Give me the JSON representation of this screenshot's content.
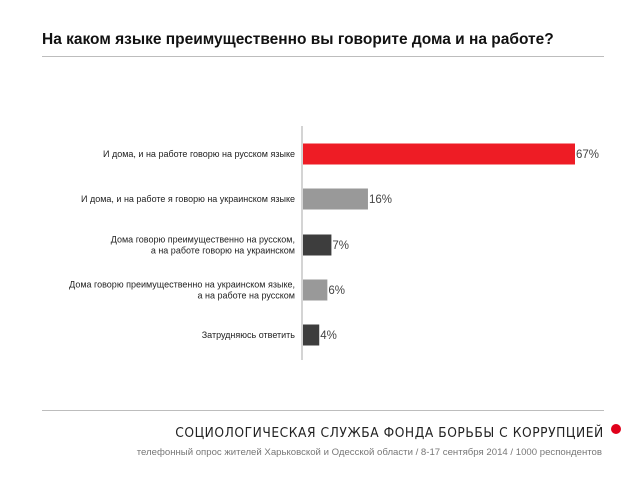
{
  "title": "На каком языке преимущественно вы говорите дома и на работе?",
  "footer": {
    "organization": "СОЦИОЛОГИЧЕСКАЯ СЛУЖБА ФОНДА БОРЬБЫ С КОРРУПЦИЕЙ",
    "note": "телефонный опрос жителей Харьковской и Одесской области / 8-17 сентября 2014 / 1000 респондентов"
  },
  "chart_data": {
    "type": "bar",
    "orientation": "horizontal",
    "categories": [
      [
        "И дома, и на работе говорю на русском языке"
      ],
      [
        "И дома, и на работе я говорю на украинском языке"
      ],
      [
        "Дома говорю преимущественно на русском,",
        "а на работе говорю на украинском"
      ],
      [
        "Дома говорю преимущественно на украинском языке,",
        "а на работе на русском"
      ],
      [
        "Затрудняюсь ответить"
      ]
    ],
    "values": [
      67,
      16,
      7,
      6,
      4
    ],
    "value_labels": [
      "67%",
      "16%",
      "7%",
      "6%",
      "4%"
    ],
    "colors": [
      "#ee1c25",
      "#999999",
      "#3d3d3d",
      "#999999",
      "#3d3d3d"
    ],
    "xlim": [
      0,
      67
    ],
    "grid": false
  }
}
